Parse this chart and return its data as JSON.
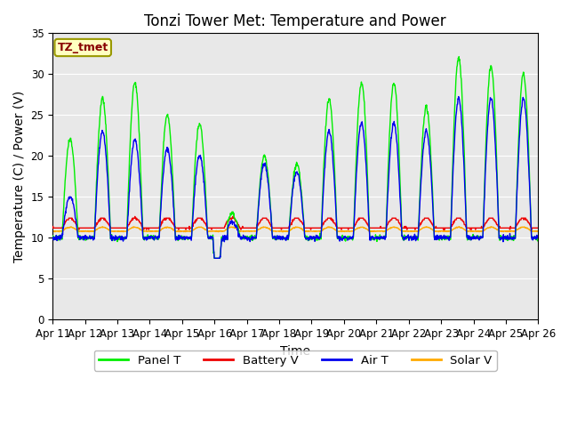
{
  "title": "Tonzi Tower Met: Temperature and Power",
  "xlabel": "Time",
  "ylabel": "Temperature (C) / Power (V)",
  "annotation": "TZ_tmet",
  "ylim": [
    0,
    35
  ],
  "yticks": [
    0,
    5,
    10,
    15,
    20,
    25,
    30,
    35
  ],
  "xtick_labels": [
    "Apr 11",
    "Apr 12",
    "Apr 13",
    "Apr 14",
    "Apr 15",
    "Apr 16",
    "Apr 17",
    "Apr 18",
    "Apr 19",
    "Apr 20",
    "Apr 21",
    "Apr 22",
    "Apr 23",
    "Apr 24",
    "Apr 25",
    "Apr 26"
  ],
  "colors": {
    "panel_t": "#00ee00",
    "battery_v": "#ee0000",
    "air_t": "#0000ee",
    "solar_v": "#ffaa00"
  },
  "background_plot": "#e8e8e8",
  "background_fig": "#ffffff",
  "legend_labels": [
    "Panel T",
    "Battery V",
    "Air T",
    "Solar V"
  ],
  "grid_color": "#ffffff",
  "title_fontsize": 12,
  "axis_fontsize": 10,
  "tick_fontsize": 8.5
}
